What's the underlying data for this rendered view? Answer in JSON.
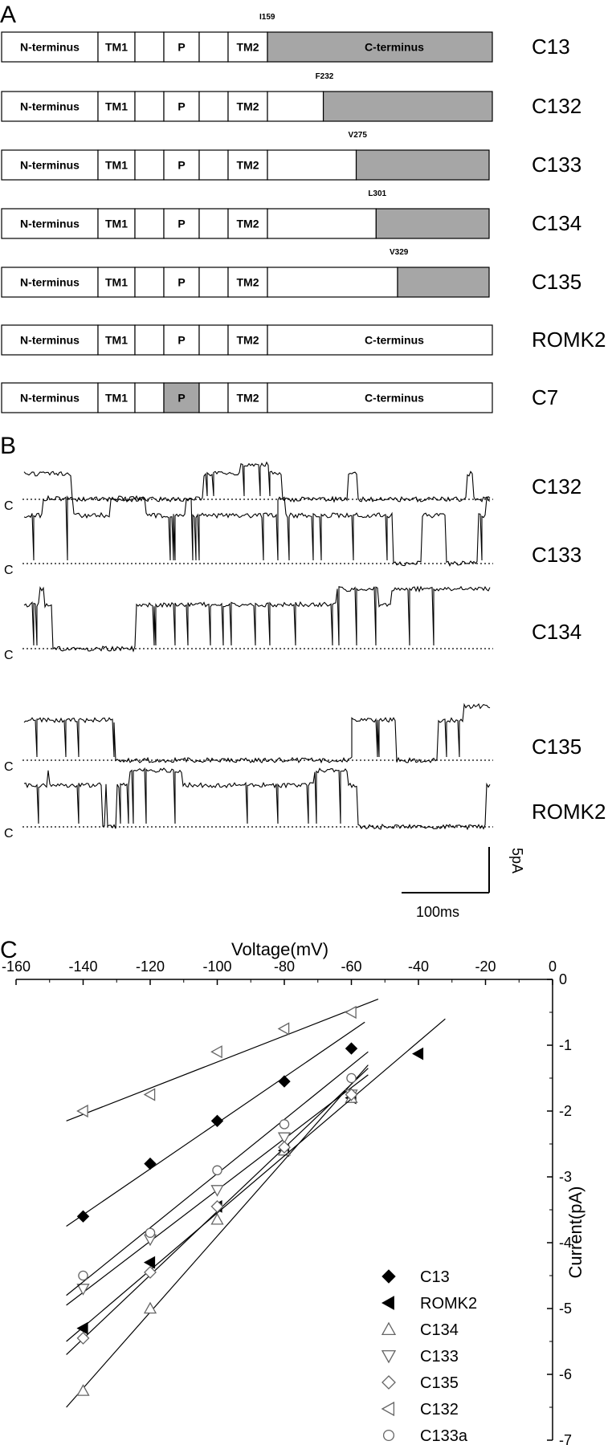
{
  "panels": {
    "a": "A",
    "b": "B",
    "c": "C"
  },
  "constructs": [
    {
      "name": "C13",
      "marker": "I159",
      "segments": [
        "N-terminus",
        "TM1",
        "",
        "P",
        "",
        "TM2"
      ],
      "cterm_label": "C-terminus",
      "cterm_start_residue": 159,
      "shaded_segments": [],
      "shaded_from_residue": 159
    },
    {
      "name": "C132",
      "marker": "F232",
      "segments": [
        "N-terminus",
        "TM1",
        "",
        "P",
        "",
        "TM2"
      ],
      "cterm_label": "",
      "shaded_segments": [],
      "shaded_from_residue": 232
    },
    {
      "name": "C133",
      "marker": "V275",
      "segments": [
        "N-terminus",
        "TM1",
        "",
        "P",
        "",
        "TM2"
      ],
      "cterm_label": "",
      "shaded_segments": [],
      "shaded_from_residue": 275
    },
    {
      "name": "C134",
      "marker": "L301",
      "segments": [
        "N-terminus",
        "TM1",
        "",
        "P",
        "",
        "TM2"
      ],
      "cterm_label": "",
      "shaded_segments": [],
      "shaded_from_residue": 301
    },
    {
      "name": "C135",
      "marker": "V329",
      "segments": [
        "N-terminus",
        "TM1",
        "",
        "P",
        "",
        "TM2"
      ],
      "cterm_label": "",
      "shaded_segments": [],
      "shaded_from_residue": 329
    },
    {
      "name": "ROMK2",
      "marker": "",
      "segments": [
        "N-terminus",
        "TM1",
        "",
        "P",
        "",
        "TM2"
      ],
      "cterm_label": "C-terminus",
      "shaded_segments": [],
      "shaded_from_residue": null
    },
    {
      "name": "C7",
      "marker": "",
      "segments": [
        "N-terminus",
        "TM1",
        "",
        "P",
        "",
        "TM2"
      ],
      "cterm_label": "C-terminus",
      "shaded_segments": [
        "P"
      ],
      "shaded_from_residue": null
    }
  ],
  "traces": {
    "closed_label": "C",
    "rows": [
      "C132",
      "C133",
      "C134",
      "C135",
      "ROMK2"
    ],
    "scale_current": "5pA",
    "scale_time": "100ms"
  },
  "colors": {
    "shaded": "#a6a6a6",
    "ink": "#000000",
    "open_marker": "#666666"
  },
  "chart_data": {
    "type": "scatter",
    "title": "",
    "xlabel": "Voltage(mV)",
    "ylabel": "Current(pA)",
    "xlim": [
      -160,
      0
    ],
    "ylim": [
      -7,
      0
    ],
    "xticks": [
      -160,
      -140,
      -120,
      -100,
      -80,
      -60,
      -40,
      -20,
      0
    ],
    "yticks": [
      0,
      -1,
      -2,
      -3,
      -4,
      -5,
      -6,
      -7
    ],
    "x_axis_position": "top",
    "y_axis_position": "right",
    "grid": false,
    "legend_position": "bottom-right",
    "series": [
      {
        "name": "C13",
        "marker": "filled-diamond",
        "x": [
          -140,
          -120,
          -100,
          -80,
          -60
        ],
        "y": [
          -3.6,
          -2.8,
          -2.15,
          -1.55,
          -1.05
        ],
        "fit": [
          [
            -145,
            -3.75
          ],
          [
            -56,
            -0.65
          ]
        ]
      },
      {
        "name": "ROMK2",
        "marker": "filled-left-triangle",
        "x": [
          -140,
          -120,
          -100,
          -80,
          -60,
          -40
        ],
        "y": [
          -5.3,
          -4.3,
          -3.45,
          -2.6,
          -1.8,
          -1.13
        ],
        "fit": [
          [
            -145,
            -5.7
          ],
          [
            -55,
            -1.35
          ]
        ]
      },
      {
        "name": "C134",
        "marker": "open-up-triangle",
        "x": [
          -140,
          -120,
          -100,
          -80,
          -60
        ],
        "y": [
          -6.25,
          -5.0,
          -3.65,
          -2.6,
          -1.8
        ],
        "fit": [
          [
            -145,
            -6.5
          ],
          [
            -55,
            -1.3
          ]
        ]
      },
      {
        "name": "C133",
        "marker": "open-down-triangle",
        "x": [
          -140,
          -120,
          -100,
          -80,
          -60
        ],
        "y": [
          -4.7,
          -3.95,
          -3.2,
          -2.4,
          -1.75
        ],
        "fit": [
          [
            -145,
            -4.95
          ],
          [
            -55,
            -1.45
          ]
        ]
      },
      {
        "name": "C135",
        "marker": "open-diamond",
        "x": [
          -140,
          -120,
          -100,
          -80,
          -60
        ],
        "y": [
          -5.45,
          -4.45,
          -3.45,
          -2.55,
          -1.75
        ],
        "fit": [
          [
            -145,
            -5.5
          ],
          [
            -32,
            -0.6
          ]
        ]
      },
      {
        "name": "C132",
        "marker": "open-left-triangle",
        "x": [
          -140,
          -120,
          -100,
          -80,
          -60
        ],
        "y": [
          -2.0,
          -1.75,
          -1.1,
          -0.75,
          -0.5
        ],
        "fit": [
          [
            -145,
            -2.15
          ],
          [
            -52,
            -0.3
          ]
        ]
      },
      {
        "name": "C133a",
        "marker": "open-circle",
        "x": [
          -140,
          -120,
          -100,
          -80,
          -60
        ],
        "y": [
          -4.5,
          -3.85,
          -2.9,
          -2.2,
          -1.5
        ],
        "fit": [
          [
            -145,
            -4.8
          ],
          [
            -55,
            -1.1
          ]
        ]
      }
    ]
  }
}
